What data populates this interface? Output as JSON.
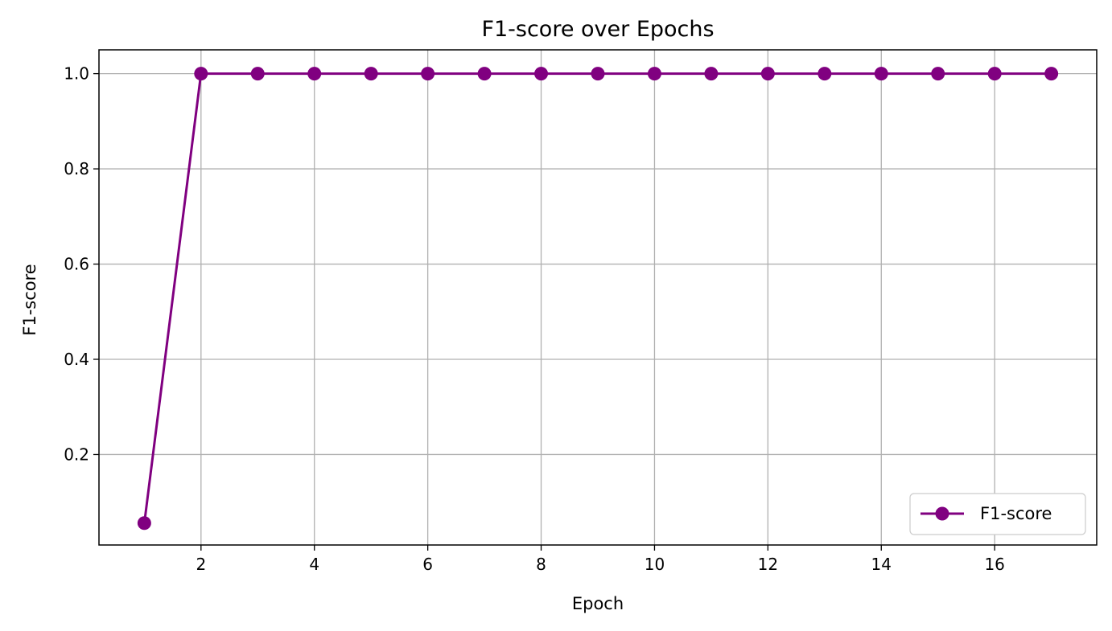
{
  "chart_data": {
    "type": "line",
    "title": "F1-score over Epochs",
    "xlabel": "Epoch",
    "ylabel": "F1-score",
    "xlim": [
      0.2,
      17.8
    ],
    "ylim": [
      0.01,
      1.05
    ],
    "xticks": [
      2,
      4,
      6,
      8,
      10,
      12,
      14,
      16
    ],
    "xtick_labels": [
      "2",
      "4",
      "6",
      "8",
      "10",
      "12",
      "14",
      "16"
    ],
    "yticks": [
      0.2,
      0.4,
      0.6,
      0.8,
      1.0
    ],
    "ytick_labels": [
      "0.2",
      "0.4",
      "0.6",
      "0.8",
      "1.0"
    ],
    "grid": true,
    "legend_position": "lower-right",
    "series": [
      {
        "name": "F1-score",
        "color": "#800080",
        "marker": "circle",
        "x": [
          1,
          2,
          3,
          4,
          5,
          6,
          7,
          8,
          9,
          10,
          11,
          12,
          13,
          14,
          15,
          16,
          17
        ],
        "y": [
          0.056,
          1.0,
          1.0,
          1.0,
          1.0,
          1.0,
          1.0,
          1.0,
          1.0,
          1.0,
          1.0,
          1.0,
          1.0,
          1.0,
          1.0,
          1.0,
          1.0
        ]
      }
    ]
  }
}
